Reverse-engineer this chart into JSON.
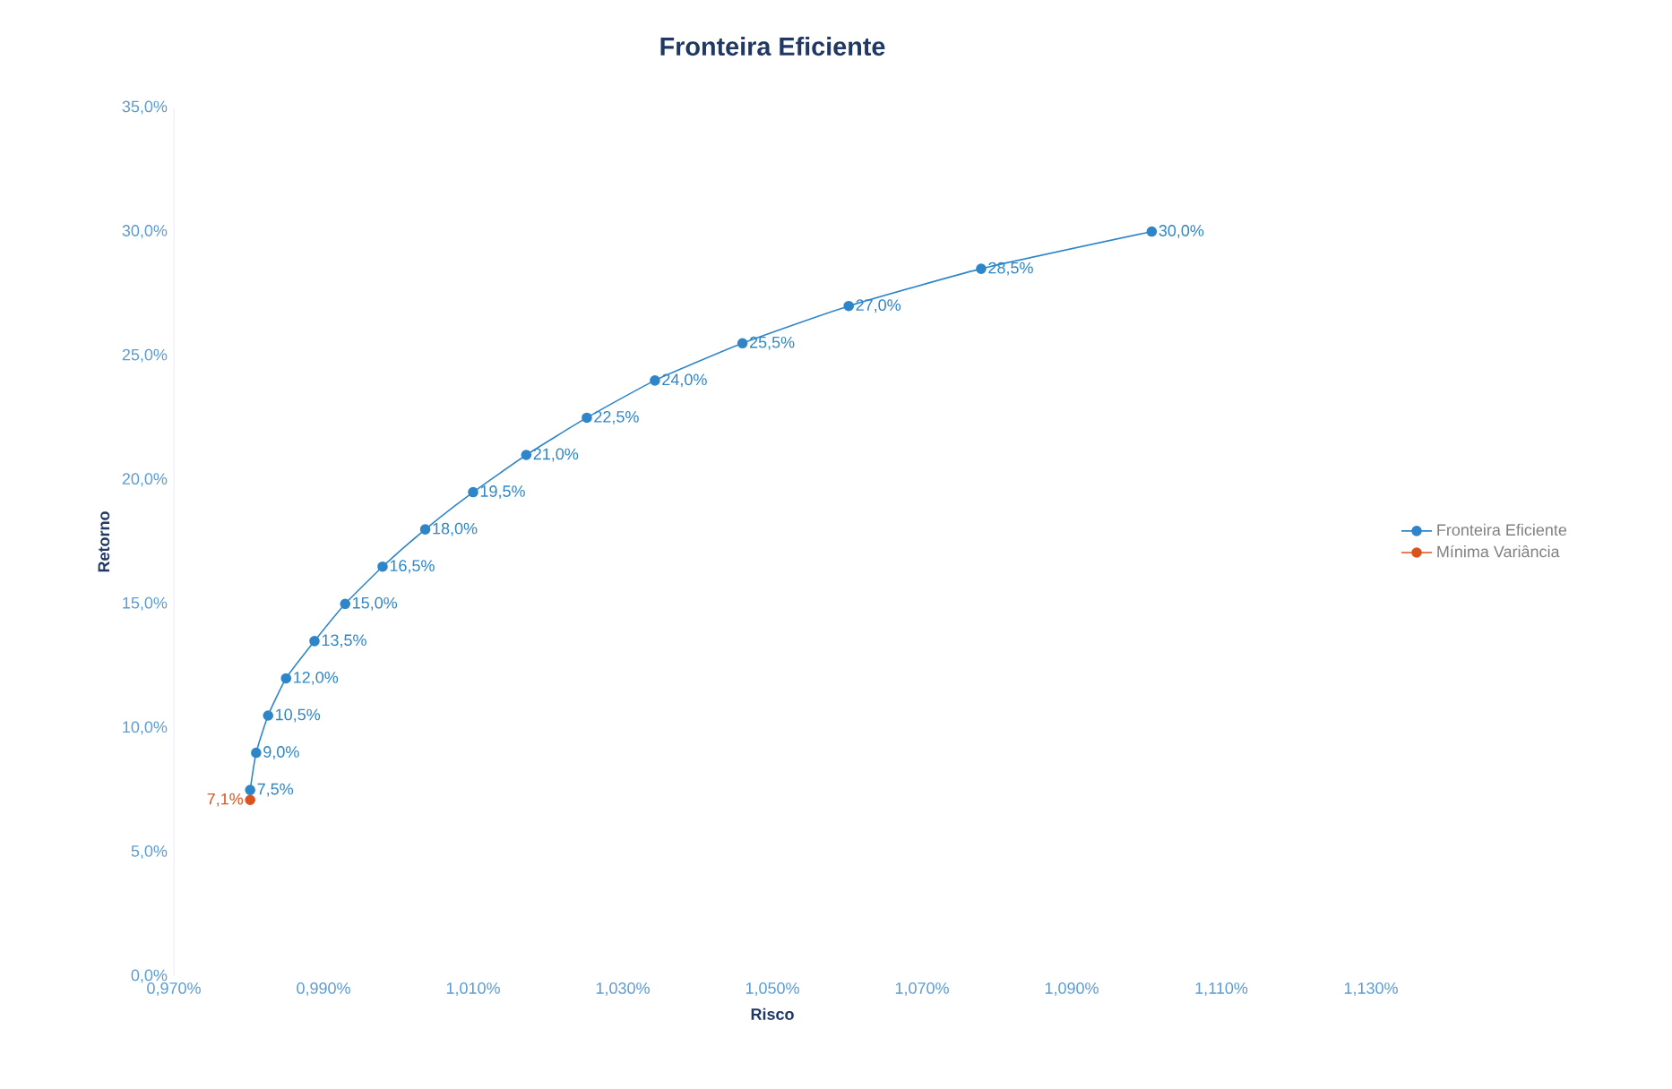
{
  "chart_data": {
    "type": "line",
    "title": "Fronteira Eficiente",
    "xlabel": "Risco",
    "ylabel": "Retorno",
    "xlim": [
      0.97,
      1.13
    ],
    "xticks": [
      {
        "value": 0.97,
        "label": "0,970%"
      },
      {
        "value": 0.99,
        "label": "0,990%"
      },
      {
        "value": 1.01,
        "label": "1,010%"
      },
      {
        "value": 1.03,
        "label": "1,030%"
      },
      {
        "value": 1.05,
        "label": "1,050%"
      },
      {
        "value": 1.07,
        "label": "1,070%"
      },
      {
        "value": 1.09,
        "label": "1,090%"
      },
      {
        "value": 1.11,
        "label": "1,110%"
      },
      {
        "value": 1.13,
        "label": "1,130%"
      }
    ],
    "ylim": [
      0,
      35
    ],
    "yticks": [
      {
        "value": 0,
        "label": "0,0%"
      },
      {
        "value": 5,
        "label": "5,0%"
      },
      {
        "value": 10,
        "label": "10,0%"
      },
      {
        "value": 15,
        "label": "15,0%"
      },
      {
        "value": 20,
        "label": "20,0%"
      },
      {
        "value": 25,
        "label": "25,0%"
      },
      {
        "value": 30,
        "label": "30,0%"
      },
      {
        "value": 35,
        "label": "35,0%"
      }
    ],
    "legend": "right",
    "marker": "circle",
    "line_style": "solid",
    "series": [
      {
        "name": "Fronteira Eficiente",
        "color": "#2e86c8",
        "x": [
          0.9802,
          0.981,
          0.9826,
          0.985,
          0.9888,
          0.9929,
          0.9979,
          1.0036,
          1.01,
          1.0171,
          1.0252,
          1.0343,
          1.046,
          1.0602,
          1.0779,
          1.1007
        ],
        "values": [
          7.5,
          9.0,
          10.5,
          12.0,
          13.5,
          15.0,
          16.5,
          18.0,
          19.5,
          21.0,
          22.5,
          24.0,
          25.5,
          27.0,
          28.5,
          30.0
        ],
        "value_labels": [
          "7,5%",
          "9,0%",
          "10,5%",
          "12,0%",
          "13,5%",
          "15,0%",
          "16,5%",
          "18,0%",
          "19,5%",
          "21,0%",
          "22,5%",
          "24,0%",
          "25,5%",
          "27,0%",
          "28,5%",
          "30,0%"
        ]
      },
      {
        "name": "Mínima Variância",
        "color": "#d9541e",
        "x": [
          0.9802
        ],
        "values": [
          7.1
        ],
        "value_labels": [
          "7,1%"
        ]
      }
    ]
  }
}
